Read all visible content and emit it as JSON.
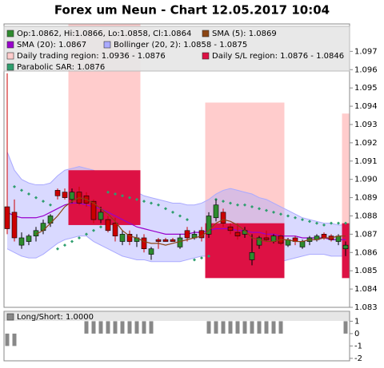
{
  "chart_data": [
    {
      "type": "candlestick",
      "title": "Forex um Neun - Chart 12.05.2017 10:04",
      "ylim": [
        1.083,
        1.0985
      ],
      "yticks": [
        1.083,
        1.084,
        1.085,
        1.086,
        1.087,
        1.088,
        1.089,
        {
          "value": 1.09,
          "label": "1.090"
        },
        1.091,
        1.092,
        1.093,
        1.094,
        1.095,
        1.096,
        1.097
      ],
      "ohlc": {
        "name": "Op:1.0862, Hi:1.0866, Lo:1.0858, Cl:1.0864",
        "color": "#2e8b2e",
        "down_color": "#cc0000",
        "open": [
          1.0885,
          1.0882,
          1.0864,
          1.0866,
          1.0869,
          1.0872,
          1.0876,
          1.0894,
          1.0893,
          1.0889,
          1.0893,
          1.0891,
          1.0888,
          1.0878,
          1.0878,
          1.0876,
          1.0866,
          1.087,
          1.0866,
          1.0868,
          1.0859,
          1.0867,
          1.0867,
          1.0867,
          1.0863,
          1.0872,
          1.0868,
          1.0872,
          1.087,
          1.0879,
          1.0882,
          1.0874,
          1.0871,
          1.087,
          1.0856,
          1.0864,
          1.0868,
          1.0866,
          1.0869,
          1.0864,
          1.0868,
          1.0863,
          1.0866,
          1.0867,
          1.087,
          1.0869,
          1.0866,
          1.0862
        ],
        "high": [
          1.0958,
          1.0889,
          1.0871,
          1.087,
          1.0874,
          1.0878,
          1.0881,
          1.0895,
          1.0895,
          1.0895,
          1.0896,
          1.0893,
          1.0889,
          1.0885,
          1.088,
          1.0879,
          1.0872,
          1.0872,
          1.087,
          1.087,
          1.0863,
          1.0868,
          1.0868,
          1.0868,
          1.087,
          1.0874,
          1.0872,
          1.0874,
          1.0882,
          1.0889,
          1.0884,
          1.0876,
          1.0876,
          1.0874,
          1.087,
          1.0869,
          1.0872,
          1.087,
          1.087,
          1.0868,
          1.0869,
          1.0867,
          1.0869,
          1.087,
          1.0871,
          1.087,
          1.087,
          1.0866
        ],
        "low": [
          1.087,
          1.0866,
          1.0862,
          1.0864,
          1.0866,
          1.087,
          1.0874,
          1.0889,
          1.0889,
          1.0887,
          1.0886,
          1.0885,
          1.0876,
          1.0876,
          1.0871,
          1.0866,
          1.0864,
          1.0864,
          1.0863,
          1.086,
          1.0856,
          1.0862,
          1.0866,
          1.0866,
          1.0862,
          1.0866,
          1.0867,
          1.0866,
          1.0868,
          1.0877,
          1.0874,
          1.087,
          1.0867,
          1.0868,
          1.0853,
          1.0862,
          1.0866,
          1.0865,
          1.0864,
          1.0863,
          1.0864,
          1.0862,
          1.0864,
          1.0866,
          1.0867,
          1.0866,
          1.0864,
          1.0858
        ],
        "close": [
          1.0873,
          1.0868,
          1.0868,
          1.0869,
          1.0872,
          1.0876,
          1.088,
          1.0891,
          1.089,
          1.0893,
          1.0887,
          1.0887,
          1.0878,
          1.0882,
          1.0872,
          1.0869,
          1.087,
          1.0866,
          1.0868,
          1.0862,
          1.0862,
          1.0866,
          1.0866,
          1.0866,
          1.0868,
          1.0868,
          1.087,
          1.0868,
          1.088,
          1.0886,
          1.0876,
          1.0872,
          1.0869,
          1.0872,
          1.086,
          1.0868,
          1.0867,
          1.0869,
          1.0865,
          1.0867,
          1.0866,
          1.0866,
          1.0868,
          1.0869,
          1.0868,
          1.0867,
          1.0869,
          1.0864
        ]
      },
      "sma5": {
        "name": "SMA (5): 1.0869",
        "color": "#8b4513",
        "values": [
          null,
          null,
          null,
          null,
          1.087,
          1.0872,
          1.0876,
          1.088,
          1.0885,
          1.0888,
          1.089,
          1.0889,
          1.0887,
          1.0884,
          1.0881,
          1.0877,
          1.0872,
          1.0869,
          1.0868,
          1.0866,
          1.0865,
          1.0865,
          1.0864,
          1.0865,
          1.0866,
          1.0867,
          1.0868,
          1.0869,
          1.0872,
          1.0876,
          1.0878,
          1.0877,
          1.0875,
          1.0872,
          1.0868,
          1.0867,
          1.0866,
          1.0866,
          1.0867,
          1.0867,
          1.0866,
          1.0866,
          1.0867,
          1.0867,
          1.0868,
          1.0868,
          1.0869,
          1.0869
        ]
      },
      "sma20": {
        "name": "SMA (20): 1.0867",
        "color": "#9900cc",
        "values": [
          1.0882,
          1.088,
          1.0879,
          1.0879,
          1.0879,
          1.088,
          1.0882,
          1.0884,
          1.0886,
          1.0887,
          1.0887,
          1.0886,
          1.0885,
          1.0884,
          1.0882,
          1.088,
          1.0878,
          1.0876,
          1.0874,
          1.0873,
          1.0872,
          1.0871,
          1.087,
          1.087,
          1.087,
          1.087,
          1.0871,
          1.0871,
          1.0872,
          1.0873,
          1.0873,
          1.0873,
          1.0872,
          1.0872,
          1.0871,
          1.0871,
          1.087,
          1.087,
          1.0869,
          1.0869,
          1.0869,
          1.0868,
          1.0868,
          1.0868,
          1.0868,
          1.0867,
          1.0867,
          1.0867
        ]
      },
      "bollinger": {
        "name": "Bollinger (20, 2): 1.0858 - 1.0875",
        "color": "#aaaaff",
        "upper": [
          1.0915,
          1.0905,
          1.09,
          1.0898,
          1.0897,
          1.0897,
          1.0898,
          1.0902,
          1.0905,
          1.0906,
          1.0907,
          1.0906,
          1.0905,
          1.0903,
          1.0901,
          1.0899,
          1.0897,
          1.0895,
          1.0893,
          1.0891,
          1.089,
          1.0889,
          1.0888,
          1.0887,
          1.0887,
          1.0886,
          1.0886,
          1.0887,
          1.0889,
          1.0892,
          1.0894,
          1.0895,
          1.0894,
          1.0893,
          1.0892,
          1.089,
          1.0889,
          1.0887,
          1.0885,
          1.0883,
          1.0881,
          1.0879,
          1.0878,
          1.0877,
          1.0876,
          1.0876,
          1.0875,
          1.0875
        ],
        "lower": [
          1.0862,
          1.086,
          1.0858,
          1.0857,
          1.0857,
          1.0859,
          1.0862,
          1.0865,
          1.0867,
          1.0868,
          1.0869,
          1.0869,
          1.0866,
          1.0864,
          1.0862,
          1.086,
          1.0858,
          1.0857,
          1.0856,
          1.0856,
          1.0855,
          1.0855,
          1.0855,
          1.0855,
          1.0855,
          1.0856,
          1.0857,
          1.0858,
          1.0858,
          1.0857,
          1.0856,
          1.0855,
          1.0854,
          1.0853,
          1.0852,
          1.0852,
          1.0853,
          1.0854,
          1.0855,
          1.0856,
          1.0857,
          1.0858,
          1.0859,
          1.0859,
          1.0859,
          1.0858,
          1.0858,
          1.0858
        ]
      },
      "trading_region": {
        "name": "Daily trading region: 1.0936 - 1.0876",
        "color": "#ffcccc",
        "regions": [
          {
            "start": 9,
            "end": 18,
            "high": 1.0985,
            "low": 1.0905
          },
          {
            "start": 28,
            "end": 38,
            "high": 1.0942,
            "low": 1.0876
          },
          {
            "start": 47,
            "end": 47,
            "high": 1.0936,
            "low": 1.0876
          }
        ]
      },
      "sl_region": {
        "name": "Daily S/L region: 1.0876 - 1.0846",
        "color": "#dd1144",
        "regions": [
          {
            "start": 9,
            "end": 18,
            "high": 1.0905,
            "low": 1.0875
          },
          {
            "start": 28,
            "end": 38,
            "high": 1.0876,
            "low": 1.0846
          },
          {
            "start": 47,
            "end": 47,
            "high": 1.0876,
            "low": 1.0846
          }
        ]
      },
      "sar": {
        "name": "Parabolic SAR: 1.0876",
        "color": "#2e9e6e",
        "values": [
          null,
          1.0896,
          1.0894,
          1.0892,
          1.089,
          1.0888,
          1.0886,
          1.0862,
          1.0864,
          1.0866,
          1.0868,
          1.087,
          1.0872,
          1.0874,
          1.0893,
          1.0892,
          1.0891,
          1.089,
          1.0889,
          1.0888,
          1.0887,
          1.0886,
          1.0884,
          1.0882,
          1.088,
          1.0878,
          1.0856,
          1.0857,
          1.0858,
          1.0889,
          1.0888,
          1.0887,
          1.0886,
          1.0886,
          1.0885,
          1.0884,
          1.0883,
          1.0882,
          1.0881,
          1.088,
          1.0879,
          1.0878,
          1.0877,
          1.0876,
          1.0875,
          1.0876,
          1.0876,
          1.0876
        ]
      }
    },
    {
      "type": "bar",
      "name": "Long/Short: 1.0000",
      "color": "#888888",
      "ylim": [
        -2.2,
        1.8
      ],
      "yticks": [
        1,
        0,
        -1,
        -2
      ],
      "values": [
        -1,
        -1,
        0,
        0,
        0,
        0,
        0,
        0,
        0,
        0,
        0,
        1,
        1,
        1,
        1,
        1,
        1,
        1,
        1,
        1,
        1,
        0,
        0,
        0,
        0,
        0,
        0,
        0,
        1,
        1,
        1,
        1,
        1,
        1,
        1,
        1,
        1,
        1,
        1,
        0,
        0,
        0,
        0,
        0,
        0,
        0,
        0,
        1
      ]
    }
  ]
}
